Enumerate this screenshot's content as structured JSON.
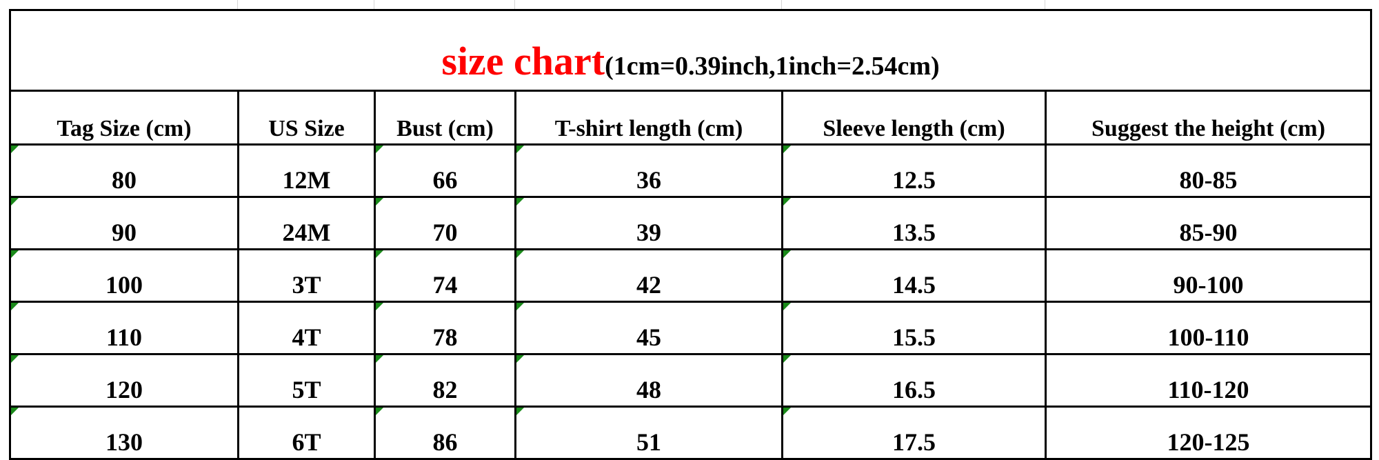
{
  "title": {
    "main": "size chart",
    "sub": "(1cm=0.39inch,1inch=2.54cm)",
    "main_color": "#ff0000"
  },
  "headers": [
    "Tag Size (cm)",
    "US Size",
    "Bust (cm)",
    "T-shirt length (cm)",
    "Sleeve length (cm)",
    "Suggest the height (cm)"
  ],
  "rows": [
    [
      "80",
      "12M",
      "66",
      "36",
      "12.5",
      "80-85"
    ],
    [
      "90",
      "24M",
      "70",
      "39",
      "13.5",
      "85-90"
    ],
    [
      "100",
      "3T",
      "74",
      "42",
      "14.5",
      "90-100"
    ],
    [
      "110",
      "4T",
      "78",
      "45",
      "15.5",
      "100-110"
    ],
    [
      "120",
      "5T",
      "82",
      "48",
      "16.5",
      "110-120"
    ],
    [
      "130",
      "6T",
      "86",
      "51",
      "17.5",
      "120-125"
    ]
  ]
}
